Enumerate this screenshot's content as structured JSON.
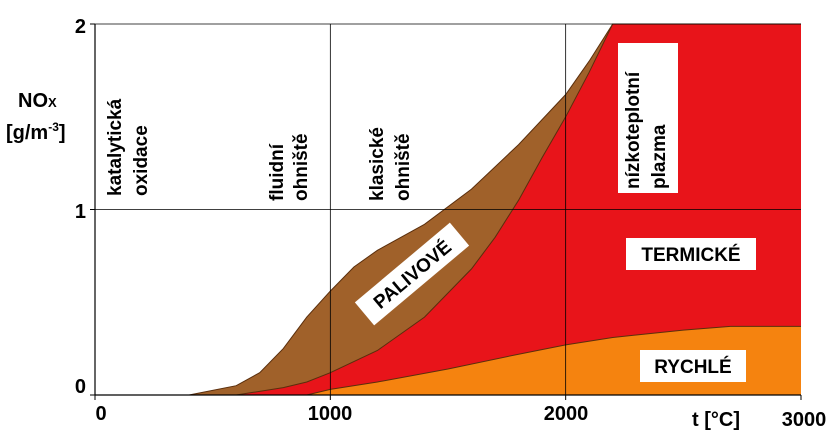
{
  "chart_data": {
    "type": "area",
    "ylabel_main": "NO",
    "ylabel_sub": "X",
    "ylabel_unit": "[g/m",
    "ylabel_unit_sup": "-3",
    "ylabel_unit_end": "]",
    "xlabel": "t [°C]",
    "xlim": [
      0,
      3000
    ],
    "ylim": [
      0,
      2
    ],
    "x_ticks": [
      "0",
      "1000",
      "2000",
      "3000"
    ],
    "y_ticks": [
      "0",
      "1",
      "2"
    ],
    "grid": true,
    "colors": {
      "brown": "#A0612A",
      "red": "#E8141A",
      "orange": "#F5830F",
      "grid": "#000000"
    },
    "series": [
      {
        "name": "PALIVOVÉ",
        "x": [
          400,
          600,
          700,
          800,
          900,
          1000,
          1100,
          1200,
          1400,
          1600,
          1800,
          2000,
          2100,
          2200
        ],
        "y": [
          0,
          0.05,
          0.12,
          0.25,
          0.42,
          0.56,
          0.69,
          0.78,
          0.92,
          1.11,
          1.35,
          1.62,
          1.8,
          2.0
        ]
      },
      {
        "name": "TERMICKÉ",
        "x": [
          600,
          800,
          900,
          1000,
          1200,
          1400,
          1600,
          1700,
          1800,
          1900,
          2000,
          2100,
          2200,
          2300,
          3000
        ],
        "y": [
          0,
          0.04,
          0.07,
          0.12,
          0.24,
          0.42,
          0.68,
          0.85,
          1.05,
          1.28,
          1.5,
          1.74,
          2.0,
          2.0,
          2.0
        ]
      },
      {
        "name": "RYCHLÉ",
        "x": [
          900,
          1000,
          1200,
          1500,
          1800,
          2000,
          2200,
          2500,
          2700,
          3000
        ],
        "y": [
          0,
          0.03,
          0.07,
          0.14,
          0.22,
          0.27,
          0.31,
          0.35,
          0.37,
          0.37
        ]
      }
    ],
    "region_labels": [
      {
        "lines": [
          "katalytická",
          "oxidace"
        ]
      },
      {
        "lines": [
          "fluidní",
          "ohniště"
        ]
      },
      {
        "lines": [
          "klasické",
          "ohniště"
        ]
      },
      {
        "lines": [
          "nízkoteplotní",
          "plazma"
        ]
      }
    ],
    "annotations": [
      "PALIVOVÉ",
      "TERMICKÉ",
      "RYCHLÉ"
    ]
  }
}
